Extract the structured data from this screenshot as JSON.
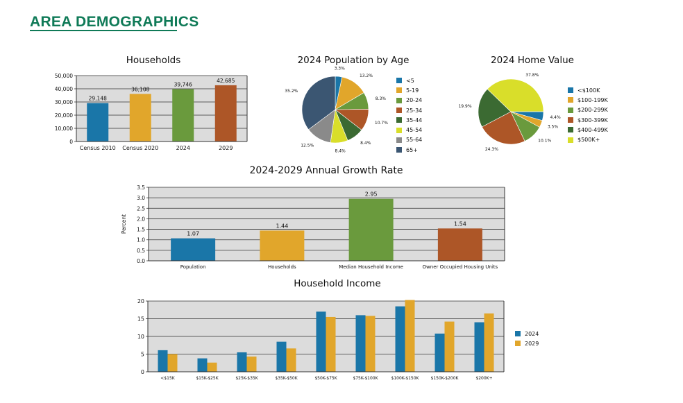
{
  "page": {
    "title": "AREA DEMOGRAPHICS"
  },
  "colors": {
    "blue": "#1a76a8",
    "gold": "#e1a62b",
    "green": "#6a9a3d",
    "rust": "#ad5627",
    "darkgreen": "#3b6a32",
    "yellow": "#d9de2a",
    "gray": "#8a8a8a",
    "navy": "#3b5672",
    "plotbg": "#dcdcdc",
    "brand": "#0f7a57"
  },
  "chart_data": [
    {
      "id": "households",
      "type": "bar",
      "title": "Households",
      "categories": [
        "Census 2010",
        "Census 2020",
        "2024",
        "2029"
      ],
      "values": [
        29148,
        36108,
        39746,
        42685
      ],
      "data_labels": [
        "29,148",
        "36,108",
        "39,746",
        "42,685"
      ],
      "bar_colors": [
        "#1a76a8",
        "#e1a62b",
        "#6a9a3d",
        "#ad5627"
      ],
      "ylim": [
        0,
        50000
      ],
      "yticks": [
        0,
        10000,
        20000,
        30000,
        40000,
        50000
      ],
      "ytick_labels": [
        "0",
        "10,000",
        "20,000",
        "30,000",
        "40,000",
        "50,000"
      ],
      "grid": true
    },
    {
      "id": "population_by_age",
      "type": "pie",
      "title": "2024 Population by Age",
      "labels": [
        "<5",
        "5-19",
        "20-24",
        "25-34",
        "35-44",
        "45-54",
        "55-64",
        "65+"
      ],
      "values": [
        3.3,
        13.2,
        8.3,
        10.7,
        8.4,
        8.4,
        12.5,
        35.2
      ],
      "value_labels": [
        "3.3%",
        "13.2%",
        "8.3%",
        "10.7%",
        "8.4%",
        "8.4%",
        "12.5%",
        "35.2%"
      ],
      "colors": [
        "#1a76a8",
        "#e1a62b",
        "#6a9a3d",
        "#ad5627",
        "#3b6a32",
        "#d9de2a",
        "#8a8a8a",
        "#3b5672"
      ],
      "legend": "right"
    },
    {
      "id": "home_value",
      "type": "pie",
      "title": "2024 Home Value",
      "labels": [
        "<$100K",
        "$100-199K",
        "$200-299K",
        "$300-399K",
        "$400-499K",
        "$500K+"
      ],
      "values": [
        4.4,
        3.5,
        10.1,
        24.3,
        19.9,
        37.8
      ],
      "value_labels": [
        "4.4%",
        "3.5%",
        "10.1%",
        "24.3%",
        "19.9%",
        "37.8%"
      ],
      "colors": [
        "#1a76a8",
        "#e1a62b",
        "#6a9a3d",
        "#ad5627",
        "#3b6a32",
        "#d9de2a"
      ],
      "legend": "right"
    },
    {
      "id": "growth_rate",
      "type": "bar",
      "title": "2024-2029 Annual Growth Rate",
      "ylabel": "Percent",
      "categories": [
        "Population",
        "Households",
        "Median Household Income",
        "Owner Occupied Housing Units"
      ],
      "values": [
        1.07,
        1.44,
        2.95,
        1.54
      ],
      "data_labels": [
        "1.07",
        "1.44",
        "2.95",
        "1.54"
      ],
      "bar_colors": [
        "#1a76a8",
        "#e1a62b",
        "#6a9a3d",
        "#ad5627"
      ],
      "ylim": [
        0,
        3.5
      ],
      "yticks": [
        0,
        0.5,
        1,
        1.5,
        2,
        2.5,
        3,
        3.5
      ],
      "ytick_labels": [
        "0.0",
        "0.5",
        "1.0",
        "1.5",
        "2.0",
        "2.5",
        "3.0",
        "3.5"
      ],
      "grid": true
    },
    {
      "id": "household_income",
      "type": "bar",
      "title": "Household Income",
      "categories": [
        "<$15K",
        "$15K-$25K",
        "$25K-$35K",
        "$35K-$50K",
        "$50K-$75K",
        "$75K-$100K",
        "$100K-$150K",
        "$150K-$200K",
        "$200K+"
      ],
      "series": [
        {
          "name": "2024",
          "color": "#1a76a8",
          "values": [
            6.1,
            3.8,
            5.5,
            8.5,
            17.0,
            16.0,
            18.5,
            10.8,
            14.0
          ]
        },
        {
          "name": "2029",
          "color": "#e1a62b",
          "values": [
            5.0,
            2.6,
            4.3,
            6.6,
            15.5,
            15.8,
            20.3,
            14.2,
            16.5
          ]
        }
      ],
      "ylim": [
        0,
        20
      ],
      "yticks": [
        0,
        5,
        10,
        15,
        20
      ],
      "ytick_labels": [
        "0",
        "5",
        "10",
        "15",
        "20"
      ],
      "legend": "right",
      "grid": true
    }
  ]
}
